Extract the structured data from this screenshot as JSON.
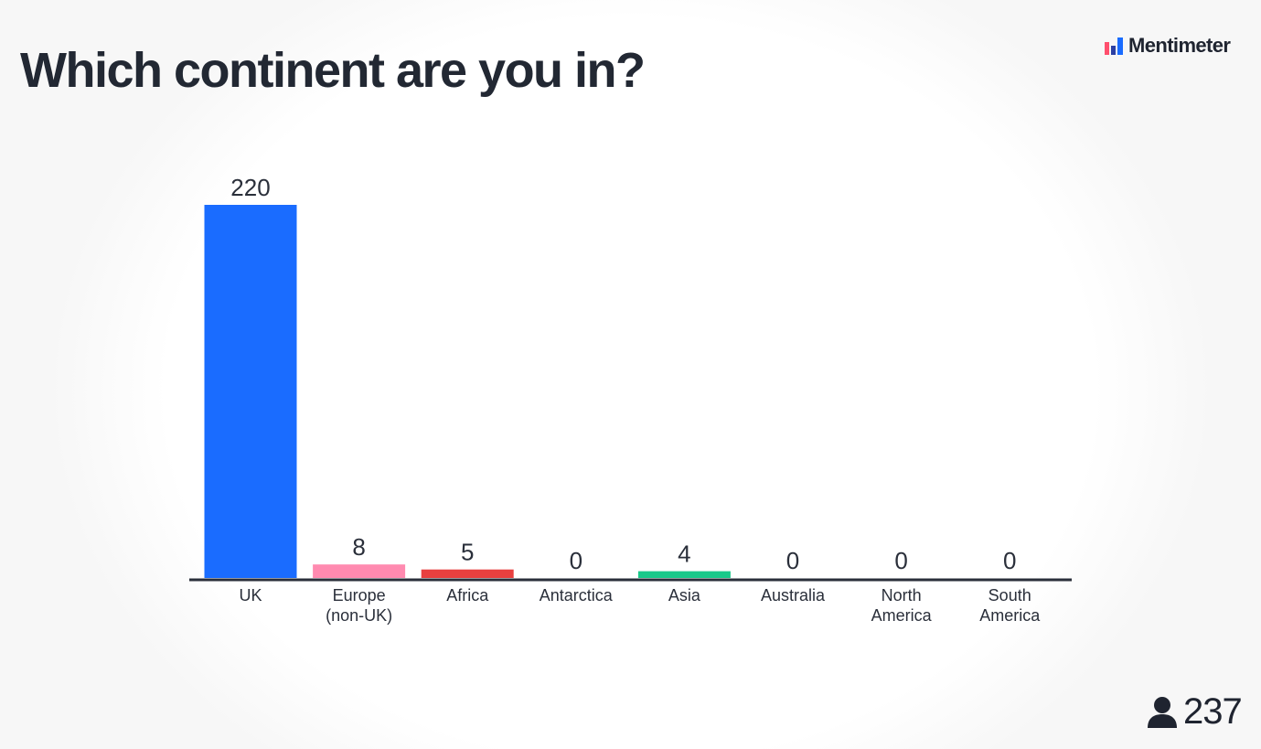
{
  "slide": {
    "question": "Which continent are you in?"
  },
  "brand": {
    "name": "Mentimeter",
    "icon": "mentimeter-logo-icon",
    "colors": [
      "#ff4f6d",
      "#1a6cff",
      "#2b3fa3"
    ]
  },
  "participants": {
    "icon": "person-icon",
    "count": "237"
  },
  "chart_data": {
    "type": "bar",
    "title": "Which continent are you in?",
    "categories": [
      [
        "UK"
      ],
      [
        "Europe",
        "(non-UK)"
      ],
      [
        "Africa"
      ],
      [
        "Antarctica"
      ],
      [
        "Asia"
      ],
      [
        "Australia"
      ],
      [
        "North",
        "America"
      ],
      [
        "South",
        "America"
      ]
    ],
    "values": [
      220,
      8,
      5,
      0,
      4,
      0,
      0,
      0
    ],
    "colors": [
      "#1a6cff",
      "#ff8ab0",
      "#e8403f",
      "#ffc61a",
      "#19c98a",
      "#7a5cff",
      "#1a6cff",
      "#ff8ab0"
    ],
    "ylim": [
      0,
      220
    ],
    "grid": false,
    "legend": "none"
  }
}
